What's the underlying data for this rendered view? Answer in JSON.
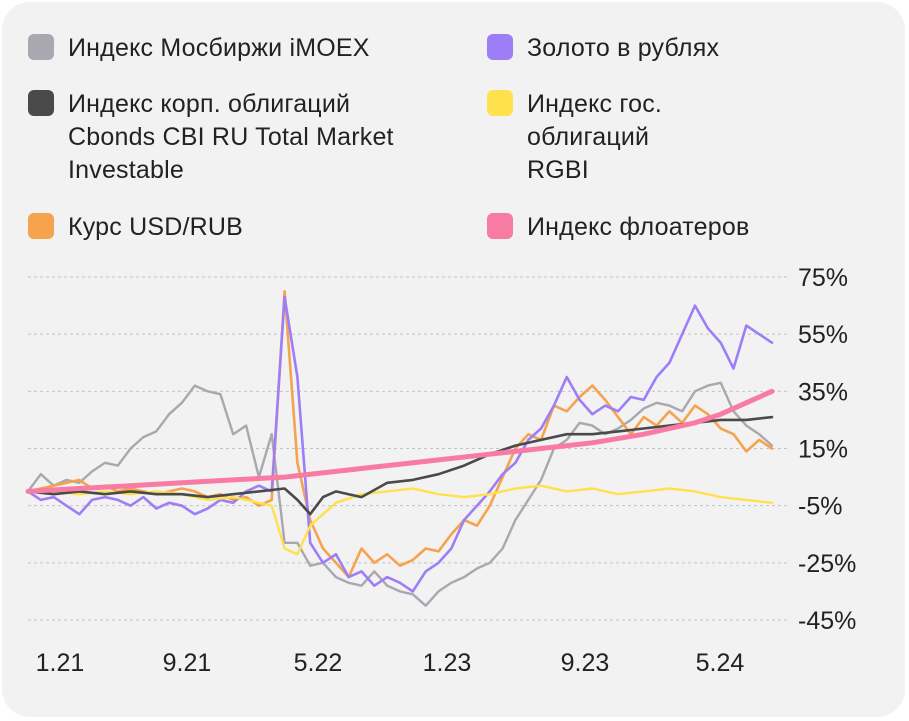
{
  "chart_data": {
    "type": "line",
    "title": "",
    "xlabel": "",
    "ylabel": "",
    "x_ticks": [
      "1.21",
      "9.21",
      "5.22",
      "1.23",
      "9.23",
      "5.24"
    ],
    "y_ticks": [
      "75%",
      "55%",
      "35%",
      "15%",
      "-5%",
      "-25%",
      "-45%"
    ],
    "y_tick_values": [
      75,
      55,
      35,
      15,
      -5,
      -25,
      -45
    ],
    "ylim": [
      -45,
      75
    ],
    "grid": true,
    "legend_position": "top",
    "series": [
      {
        "name": "Индекс Мосбиржи iMOEX",
        "color": "#a9a7b0",
        "points": [
          [
            0,
            0
          ],
          [
            0.5,
            6
          ],
          [
            1,
            2
          ],
          [
            1.5,
            4
          ],
          [
            2,
            3
          ],
          [
            2.5,
            7
          ],
          [
            3,
            10
          ],
          [
            3.5,
            9
          ],
          [
            4,
            15
          ],
          [
            4.5,
            19
          ],
          [
            5,
            21
          ],
          [
            5.5,
            27
          ],
          [
            6,
            31
          ],
          [
            6.5,
            37
          ],
          [
            7,
            35
          ],
          [
            7.5,
            34
          ],
          [
            8,
            20
          ],
          [
            8.5,
            23
          ],
          [
            9,
            5
          ],
          [
            9.5,
            20
          ],
          [
            10,
            -18
          ],
          [
            10.5,
            -18
          ],
          [
            11,
            -26
          ],
          [
            11.5,
            -25
          ],
          [
            12,
            -30
          ],
          [
            12.5,
            -32
          ],
          [
            13,
            -33
          ],
          [
            13.5,
            -28
          ],
          [
            14,
            -33
          ],
          [
            14.5,
            -35
          ],
          [
            15,
            -36
          ],
          [
            15.5,
            -40
          ],
          [
            16,
            -35
          ],
          [
            16.5,
            -32
          ],
          [
            17,
            -30
          ],
          [
            17.5,
            -27
          ],
          [
            18,
            -25
          ],
          [
            18.5,
            -20
          ],
          [
            19,
            -10
          ],
          [
            19.5,
            -3
          ],
          [
            20,
            4
          ],
          [
            20.5,
            15
          ],
          [
            21,
            18
          ],
          [
            21.5,
            24
          ],
          [
            22,
            23
          ],
          [
            22.5,
            20
          ],
          [
            23,
            22
          ],
          [
            23.5,
            25
          ],
          [
            24,
            29
          ],
          [
            24.5,
            31
          ],
          [
            25,
            30
          ],
          [
            25.5,
            28
          ],
          [
            26,
            35
          ],
          [
            26.5,
            37
          ],
          [
            27,
            38
          ],
          [
            27.5,
            28
          ],
          [
            28,
            23
          ],
          [
            28.5,
            20
          ],
          [
            29,
            16
          ]
        ]
      },
      {
        "name": "Золото в рублях",
        "color": "#9d7ef7",
        "points": [
          [
            0,
            0
          ],
          [
            0.5,
            -3
          ],
          [
            1,
            -2
          ],
          [
            1.5,
            -5
          ],
          [
            2,
            -8
          ],
          [
            2.5,
            -3
          ],
          [
            3,
            -2
          ],
          [
            3.5,
            -3
          ],
          [
            4,
            -5
          ],
          [
            4.5,
            -2
          ],
          [
            5,
            -6
          ],
          [
            5.5,
            -4
          ],
          [
            6,
            -5
          ],
          [
            6.5,
            -8
          ],
          [
            7,
            -6
          ],
          [
            7.5,
            -3
          ],
          [
            8,
            -4
          ],
          [
            8.5,
            0
          ],
          [
            9,
            2
          ],
          [
            9.5,
            0
          ],
          [
            10,
            68
          ],
          [
            10.5,
            40
          ],
          [
            11,
            -18
          ],
          [
            11.5,
            -25
          ],
          [
            12,
            -22
          ],
          [
            12.5,
            -30
          ],
          [
            13,
            -28
          ],
          [
            13.5,
            -33
          ],
          [
            14,
            -30
          ],
          [
            14.5,
            -32
          ],
          [
            15,
            -35
          ],
          [
            15.5,
            -28
          ],
          [
            16,
            -25
          ],
          [
            16.5,
            -20
          ],
          [
            17,
            -10
          ],
          [
            17.5,
            -5
          ],
          [
            18,
            0
          ],
          [
            18.5,
            6
          ],
          [
            19,
            10
          ],
          [
            19.5,
            18
          ],
          [
            20,
            22
          ],
          [
            20.5,
            30
          ],
          [
            21,
            40
          ],
          [
            21.5,
            32
          ],
          [
            22,
            27
          ],
          [
            22.5,
            30
          ],
          [
            23,
            28
          ],
          [
            23.5,
            33
          ],
          [
            24,
            32
          ],
          [
            24.5,
            40
          ],
          [
            25,
            45
          ],
          [
            25.5,
            55
          ],
          [
            26,
            65
          ],
          [
            26.5,
            57
          ],
          [
            27,
            52
          ],
          [
            27.5,
            43
          ],
          [
            28,
            58
          ],
          [
            28.5,
            55
          ],
          [
            29,
            52
          ]
        ]
      },
      {
        "name": "Индекс корп. облигаций Cbonds CBI RU Total Market Investable",
        "color": "#4a4a4a",
        "points": [
          [
            0,
            0
          ],
          [
            1,
            -1
          ],
          [
            2,
            0
          ],
          [
            3,
            -1
          ],
          [
            4,
            0
          ],
          [
            5,
            -1
          ],
          [
            6,
            -1
          ],
          [
            7,
            -2
          ],
          [
            8,
            -1
          ],
          [
            9,
            0
          ],
          [
            10,
            1
          ],
          [
            10.5,
            -3
          ],
          [
            11,
            -8
          ],
          [
            11.5,
            -2
          ],
          [
            12,
            0
          ],
          [
            13,
            -2
          ],
          [
            14,
            3
          ],
          [
            15,
            4
          ],
          [
            16,
            6
          ],
          [
            17,
            9
          ],
          [
            18,
            13
          ],
          [
            19,
            16
          ],
          [
            20,
            18
          ],
          [
            21,
            20
          ],
          [
            22,
            20
          ],
          [
            23,
            21
          ],
          [
            24,
            22
          ],
          [
            25,
            23
          ],
          [
            26,
            24
          ],
          [
            27,
            25
          ],
          [
            28,
            25
          ],
          [
            29,
            26
          ]
        ]
      },
      {
        "name": "Индекс гос. облигаций RGBI",
        "color": "#ffe14d",
        "points": [
          [
            0,
            0
          ],
          [
            1,
            0
          ],
          [
            2,
            -1
          ],
          [
            3,
            0
          ],
          [
            4,
            -1
          ],
          [
            5,
            0
          ],
          [
            6,
            -1
          ],
          [
            7,
            -3
          ],
          [
            8,
            -2
          ],
          [
            9,
            -4
          ],
          [
            9.5,
            -5
          ],
          [
            10,
            -20
          ],
          [
            10.5,
            -22
          ],
          [
            11,
            -12
          ],
          [
            11.5,
            -8
          ],
          [
            12,
            -4
          ],
          [
            13,
            -1
          ],
          [
            14,
            0
          ],
          [
            15,
            1
          ],
          [
            16,
            -1
          ],
          [
            17,
            -2
          ],
          [
            18,
            -1
          ],
          [
            19,
            1
          ],
          [
            20,
            2
          ],
          [
            21,
            0
          ],
          [
            22,
            1
          ],
          [
            23,
            -1
          ],
          [
            24,
            0
          ],
          [
            25,
            1
          ],
          [
            26,
            0
          ],
          [
            27,
            -2
          ],
          [
            28,
            -3
          ],
          [
            29,
            -4
          ]
        ]
      },
      {
        "name": "Курс USD/RUB",
        "color": "#f5a34d",
        "points": [
          [
            0,
            0
          ],
          [
            0.5,
            1
          ],
          [
            1,
            2
          ],
          [
            1.5,
            3
          ],
          [
            2,
            4
          ],
          [
            2.5,
            1
          ],
          [
            3,
            2
          ],
          [
            3.5,
            0
          ],
          [
            4,
            1
          ],
          [
            4.5,
            0
          ],
          [
            5,
            -1
          ],
          [
            5.5,
            0
          ],
          [
            6,
            1
          ],
          [
            6.5,
            0
          ],
          [
            7,
            -2
          ],
          [
            7.5,
            -1
          ],
          [
            8,
            -3
          ],
          [
            8.5,
            -2
          ],
          [
            9,
            -5
          ],
          [
            9.5,
            -3
          ],
          [
            10,
            70
          ],
          [
            10.5,
            10
          ],
          [
            11,
            -10
          ],
          [
            11.5,
            -20
          ],
          [
            12,
            -25
          ],
          [
            12.5,
            -30
          ],
          [
            13,
            -20
          ],
          [
            13.5,
            -25
          ],
          [
            14,
            -22
          ],
          [
            14.5,
            -26
          ],
          [
            15,
            -24
          ],
          [
            15.5,
            -20
          ],
          [
            16,
            -21
          ],
          [
            16.5,
            -15
          ],
          [
            17,
            -10
          ],
          [
            17.5,
            -12
          ],
          [
            18,
            -5
          ],
          [
            18.5,
            5
          ],
          [
            19,
            15
          ],
          [
            19.5,
            20
          ],
          [
            20,
            18
          ],
          [
            20.5,
            30
          ],
          [
            21,
            28
          ],
          [
            21.5,
            33
          ],
          [
            22,
            37
          ],
          [
            22.5,
            32
          ],
          [
            23,
            26
          ],
          [
            23.5,
            20
          ],
          [
            24,
            26
          ],
          [
            24.5,
            23
          ],
          [
            25,
            28
          ],
          [
            25.5,
            24
          ],
          [
            26,
            30
          ],
          [
            26.5,
            27
          ],
          [
            27,
            22
          ],
          [
            27.5,
            20
          ],
          [
            28,
            14
          ],
          [
            28.5,
            18
          ],
          [
            29,
            15
          ]
        ]
      },
      {
        "name": "Индекс флоатеров",
        "color": "#f87ba4",
        "points": [
          [
            0,
            0
          ],
          [
            2,
            1
          ],
          [
            4,
            2
          ],
          [
            6,
            3
          ],
          [
            8,
            4
          ],
          [
            10,
            5
          ],
          [
            12,
            7
          ],
          [
            14,
            9
          ],
          [
            16,
            11
          ],
          [
            18,
            13
          ],
          [
            20,
            15
          ],
          [
            22,
            17
          ],
          [
            24,
            20
          ],
          [
            26,
            24
          ],
          [
            27,
            27
          ],
          [
            28,
            31
          ],
          [
            29,
            35
          ]
        ]
      }
    ]
  }
}
